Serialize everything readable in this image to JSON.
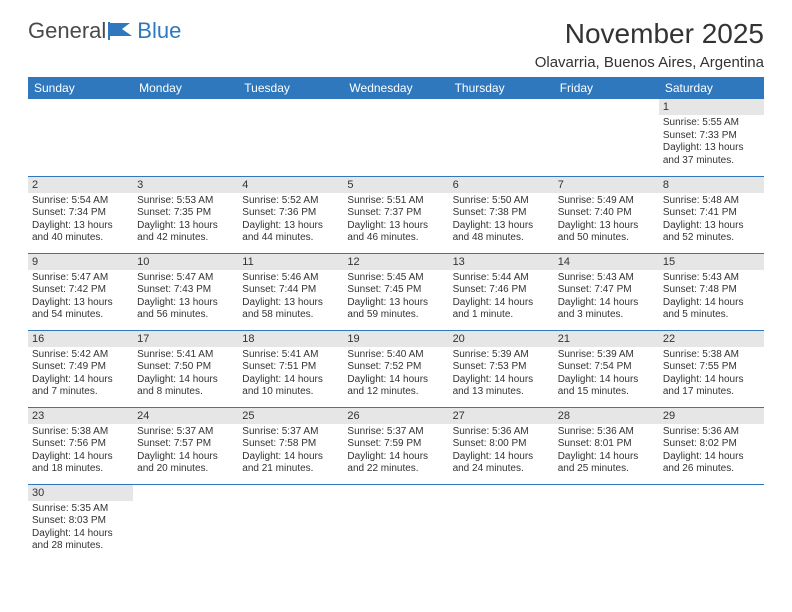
{
  "brand": {
    "part1": "General",
    "part2": "Blue"
  },
  "title": "November 2025",
  "location": "Olavarria, Buenos Aires, Argentina",
  "colors": {
    "header_bg": "#2f78bd",
    "header_text": "#ffffff",
    "daynum_bg": "#e6e6e6",
    "row_border": "#2f78bd",
    "text": "#333333",
    "logo_gray": "#4a4a4a",
    "logo_blue": "#2f78bd",
    "page_bg": "#ffffff"
  },
  "days_of_week": [
    "Sunday",
    "Monday",
    "Tuesday",
    "Wednesday",
    "Thursday",
    "Friday",
    "Saturday"
  ],
  "cells": [
    {
      "n": "",
      "sr": "",
      "ss": "",
      "dl": ""
    },
    {
      "n": "",
      "sr": "",
      "ss": "",
      "dl": ""
    },
    {
      "n": "",
      "sr": "",
      "ss": "",
      "dl": ""
    },
    {
      "n": "",
      "sr": "",
      "ss": "",
      "dl": ""
    },
    {
      "n": "",
      "sr": "",
      "ss": "",
      "dl": ""
    },
    {
      "n": "",
      "sr": "",
      "ss": "",
      "dl": ""
    },
    {
      "n": "1",
      "sr": "Sunrise: 5:55 AM",
      "ss": "Sunset: 7:33 PM",
      "dl": "Daylight: 13 hours and 37 minutes."
    },
    {
      "n": "2",
      "sr": "Sunrise: 5:54 AM",
      "ss": "Sunset: 7:34 PM",
      "dl": "Daylight: 13 hours and 40 minutes."
    },
    {
      "n": "3",
      "sr": "Sunrise: 5:53 AM",
      "ss": "Sunset: 7:35 PM",
      "dl": "Daylight: 13 hours and 42 minutes."
    },
    {
      "n": "4",
      "sr": "Sunrise: 5:52 AM",
      "ss": "Sunset: 7:36 PM",
      "dl": "Daylight: 13 hours and 44 minutes."
    },
    {
      "n": "5",
      "sr": "Sunrise: 5:51 AM",
      "ss": "Sunset: 7:37 PM",
      "dl": "Daylight: 13 hours and 46 minutes."
    },
    {
      "n": "6",
      "sr": "Sunrise: 5:50 AM",
      "ss": "Sunset: 7:38 PM",
      "dl": "Daylight: 13 hours and 48 minutes."
    },
    {
      "n": "7",
      "sr": "Sunrise: 5:49 AM",
      "ss": "Sunset: 7:40 PM",
      "dl": "Daylight: 13 hours and 50 minutes."
    },
    {
      "n": "8",
      "sr": "Sunrise: 5:48 AM",
      "ss": "Sunset: 7:41 PM",
      "dl": "Daylight: 13 hours and 52 minutes."
    },
    {
      "n": "9",
      "sr": "Sunrise: 5:47 AM",
      "ss": "Sunset: 7:42 PM",
      "dl": "Daylight: 13 hours and 54 minutes."
    },
    {
      "n": "10",
      "sr": "Sunrise: 5:47 AM",
      "ss": "Sunset: 7:43 PM",
      "dl": "Daylight: 13 hours and 56 minutes."
    },
    {
      "n": "11",
      "sr": "Sunrise: 5:46 AM",
      "ss": "Sunset: 7:44 PM",
      "dl": "Daylight: 13 hours and 58 minutes."
    },
    {
      "n": "12",
      "sr": "Sunrise: 5:45 AM",
      "ss": "Sunset: 7:45 PM",
      "dl": "Daylight: 13 hours and 59 minutes."
    },
    {
      "n": "13",
      "sr": "Sunrise: 5:44 AM",
      "ss": "Sunset: 7:46 PM",
      "dl": "Daylight: 14 hours and 1 minute."
    },
    {
      "n": "14",
      "sr": "Sunrise: 5:43 AM",
      "ss": "Sunset: 7:47 PM",
      "dl": "Daylight: 14 hours and 3 minutes."
    },
    {
      "n": "15",
      "sr": "Sunrise: 5:43 AM",
      "ss": "Sunset: 7:48 PM",
      "dl": "Daylight: 14 hours and 5 minutes."
    },
    {
      "n": "16",
      "sr": "Sunrise: 5:42 AM",
      "ss": "Sunset: 7:49 PM",
      "dl": "Daylight: 14 hours and 7 minutes."
    },
    {
      "n": "17",
      "sr": "Sunrise: 5:41 AM",
      "ss": "Sunset: 7:50 PM",
      "dl": "Daylight: 14 hours and 8 minutes."
    },
    {
      "n": "18",
      "sr": "Sunrise: 5:41 AM",
      "ss": "Sunset: 7:51 PM",
      "dl": "Daylight: 14 hours and 10 minutes."
    },
    {
      "n": "19",
      "sr": "Sunrise: 5:40 AM",
      "ss": "Sunset: 7:52 PM",
      "dl": "Daylight: 14 hours and 12 minutes."
    },
    {
      "n": "20",
      "sr": "Sunrise: 5:39 AM",
      "ss": "Sunset: 7:53 PM",
      "dl": "Daylight: 14 hours and 13 minutes."
    },
    {
      "n": "21",
      "sr": "Sunrise: 5:39 AM",
      "ss": "Sunset: 7:54 PM",
      "dl": "Daylight: 14 hours and 15 minutes."
    },
    {
      "n": "22",
      "sr": "Sunrise: 5:38 AM",
      "ss": "Sunset: 7:55 PM",
      "dl": "Daylight: 14 hours and 17 minutes."
    },
    {
      "n": "23",
      "sr": "Sunrise: 5:38 AM",
      "ss": "Sunset: 7:56 PM",
      "dl": "Daylight: 14 hours and 18 minutes."
    },
    {
      "n": "24",
      "sr": "Sunrise: 5:37 AM",
      "ss": "Sunset: 7:57 PM",
      "dl": "Daylight: 14 hours and 20 minutes."
    },
    {
      "n": "25",
      "sr": "Sunrise: 5:37 AM",
      "ss": "Sunset: 7:58 PM",
      "dl": "Daylight: 14 hours and 21 minutes."
    },
    {
      "n": "26",
      "sr": "Sunrise: 5:37 AM",
      "ss": "Sunset: 7:59 PM",
      "dl": "Daylight: 14 hours and 22 minutes."
    },
    {
      "n": "27",
      "sr": "Sunrise: 5:36 AM",
      "ss": "Sunset: 8:00 PM",
      "dl": "Daylight: 14 hours and 24 minutes."
    },
    {
      "n": "28",
      "sr": "Sunrise: 5:36 AM",
      "ss": "Sunset: 8:01 PM",
      "dl": "Daylight: 14 hours and 25 minutes."
    },
    {
      "n": "29",
      "sr": "Sunrise: 5:36 AM",
      "ss": "Sunset: 8:02 PM",
      "dl": "Daylight: 14 hours and 26 minutes."
    },
    {
      "n": "30",
      "sr": "Sunrise: 5:35 AM",
      "ss": "Sunset: 8:03 PM",
      "dl": "Daylight: 14 hours and 28 minutes."
    },
    {
      "n": "",
      "sr": "",
      "ss": "",
      "dl": ""
    },
    {
      "n": "",
      "sr": "",
      "ss": "",
      "dl": ""
    },
    {
      "n": "",
      "sr": "",
      "ss": "",
      "dl": ""
    },
    {
      "n": "",
      "sr": "",
      "ss": "",
      "dl": ""
    },
    {
      "n": "",
      "sr": "",
      "ss": "",
      "dl": ""
    },
    {
      "n": "",
      "sr": "",
      "ss": "",
      "dl": ""
    }
  ]
}
